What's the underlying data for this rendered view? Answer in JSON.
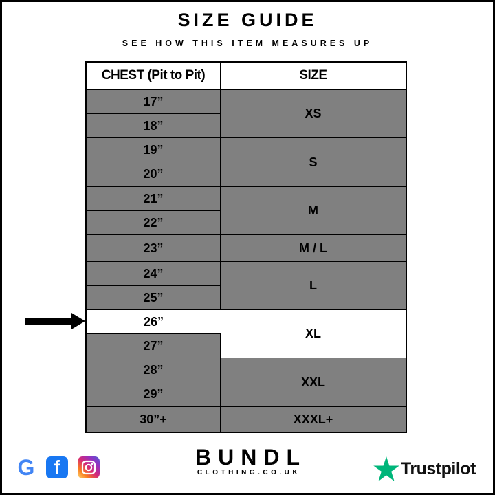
{
  "header": {
    "title": "SIZE GUIDE",
    "subtitle": "SEE HOW THIS ITEM MEASURES UP"
  },
  "table": {
    "headers": [
      "CHEST (Pit to Pit)",
      "SIZE"
    ],
    "chest": [
      "17”",
      "18”",
      "19”",
      "20”",
      "21”",
      "22”",
      "23”",
      "24”",
      "25”",
      "26”",
      "27”",
      "28”",
      "29”",
      "30”+"
    ],
    "sizes": [
      "XS",
      "S",
      "M",
      "M / L",
      "L",
      "XL",
      "XXL",
      "XXXL+"
    ],
    "highlighted_chest": "26”",
    "highlighted_size": "XL"
  },
  "footer": {
    "social_icons": [
      "google-icon",
      "facebook-icon",
      "instagram-icon"
    ],
    "brand": "BUNDL",
    "brand_url": "CLOTHING.CO.UK",
    "trustpilot": "Trustpilot"
  },
  "colors": {
    "row_gray": "#808080",
    "highlight": "#ffffff",
    "trustpilot_green": "#00b67a"
  }
}
